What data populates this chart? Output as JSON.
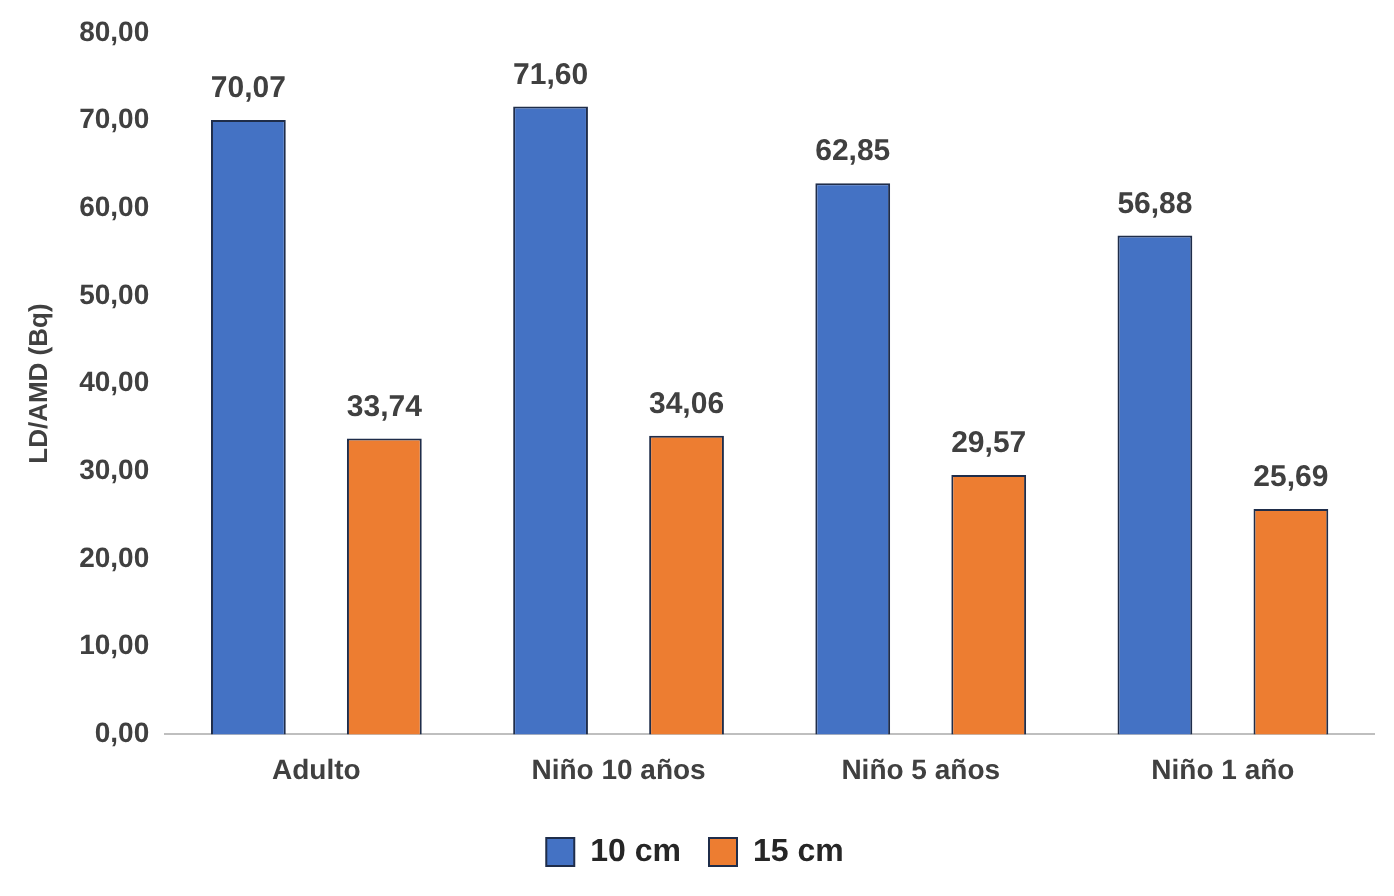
{
  "chart_data": {
    "type": "bar",
    "ylabel": "LD/AMD (Bq)",
    "categories": [
      "Adulto",
      "Niño 10 años",
      "Niño 5 años",
      "Niño 1 año"
    ],
    "series": [
      {
        "name": "10 cm",
        "color": "#4472c4",
        "values": [
          70.07,
          71.6,
          62.85,
          56.88
        ],
        "value_labels": [
          "70,07",
          "71,60",
          "62,85",
          "56,88"
        ]
      },
      {
        "name": "15 cm",
        "color": "#ed7d31",
        "values": [
          33.74,
          34.06,
          29.57,
          25.69
        ],
        "value_labels": [
          "33,74",
          "34,06",
          "29,57",
          "25,69"
        ]
      }
    ],
    "ylim": [
      0,
      80
    ],
    "yticks": [
      {
        "value": 0,
        "label": "0,00"
      },
      {
        "value": 10,
        "label": "10,00"
      },
      {
        "value": 20,
        "label": "20,00"
      },
      {
        "value": 30,
        "label": "30,00"
      },
      {
        "value": 40,
        "label": "40,00"
      },
      {
        "value": 50,
        "label": "50,00"
      },
      {
        "value": 60,
        "label": "60,00"
      },
      {
        "value": 70,
        "label": "70,00"
      },
      {
        "value": 80,
        "label": "80,00"
      }
    ],
    "grid": false,
    "legend": "bottom"
  }
}
